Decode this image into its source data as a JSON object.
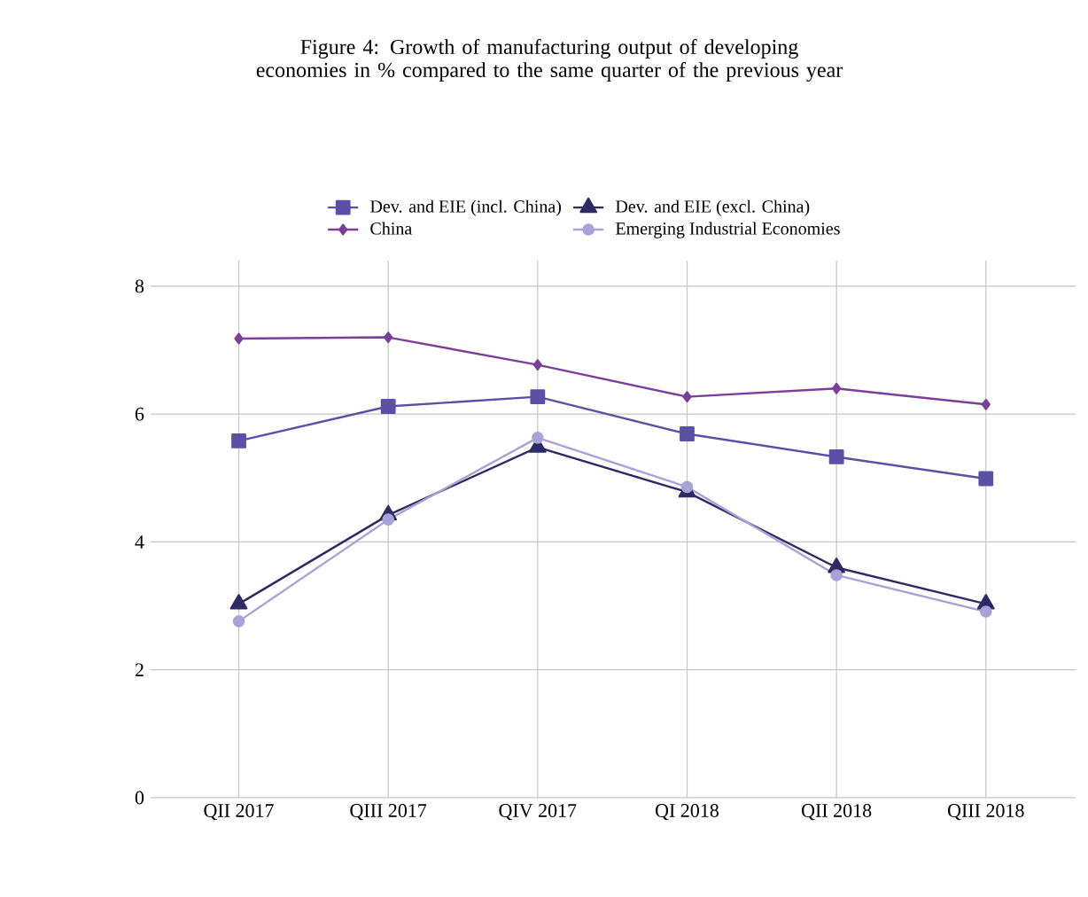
{
  "chart_data": {
    "type": "line",
    "title": "Figure 4: Growth of manufacturing output of developing economies in % compared to the same quarter of the previous year",
    "categories": [
      "QII 2017",
      "QIII 2017",
      "QIV 2017",
      "QI 2018",
      "QII 2018",
      "QIII 2018"
    ],
    "series": [
      {
        "name": "Dev. and EIE (incl. China)",
        "color": "#5b4fa6",
        "marker": "square",
        "values": [
          5.58,
          6.12,
          6.27,
          5.69,
          5.33,
          4.99
        ]
      },
      {
        "name": "Dev. and EIE (excl. China)",
        "color": "#2e2a66",
        "marker": "triangle",
        "values": [
          3.03,
          4.42,
          5.48,
          4.78,
          3.6,
          3.03
        ]
      },
      {
        "name": "China",
        "color": "#7b3f99",
        "marker": "diamond",
        "values": [
          7.18,
          7.2,
          6.77,
          6.27,
          6.4,
          6.15
        ]
      },
      {
        "name": "Emerging Industrial Economies",
        "color": "#a8a3d6",
        "marker": "circle",
        "values": [
          2.76,
          4.35,
          5.63,
          4.86,
          3.48,
          2.91
        ]
      }
    ],
    "ylim": [
      0,
      8.4
    ],
    "yticks": [
      0,
      2,
      4,
      6,
      8
    ],
    "grid": true,
    "legend": "top"
  }
}
